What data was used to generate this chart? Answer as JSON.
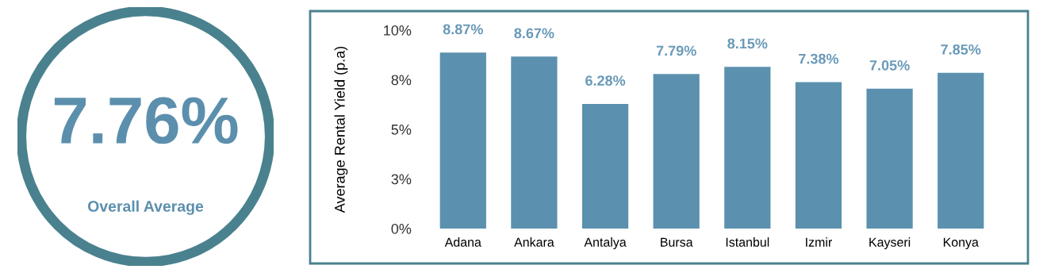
{
  "chart_data": [
    {
      "type": "other",
      "title": "7.76%",
      "subtitle": "Overall Average",
      "color": "#4a818e"
    },
    {
      "type": "bar",
      "ylabel": "Average Rental Yield (p.a)",
      "categories": [
        "Adana",
        "Ankara",
        "Antalya",
        "Bursa",
        "Istanbul",
        "Izmir",
        "Kayseri",
        "Konya"
      ],
      "values": [
        8.87,
        8.67,
        6.28,
        7.79,
        8.15,
        7.38,
        7.05,
        7.85
      ],
      "value_labels": [
        "8.87%",
        "8.67%",
        "6.28%",
        "7.79%",
        "8.15%",
        "7.38%",
        "7.05%",
        "7.85%"
      ],
      "color": "#5b91ae",
      "ylim": [
        0,
        10
      ],
      "yticks": [
        {
          "value": 0,
          "label": "0%"
        },
        {
          "value": 2.5,
          "label": "3%"
        },
        {
          "value": 5,
          "label": "5%"
        },
        {
          "value": 7.5,
          "label": "8%"
        },
        {
          "value": 10,
          "label": "10%"
        }
      ],
      "grid": false
    }
  ]
}
